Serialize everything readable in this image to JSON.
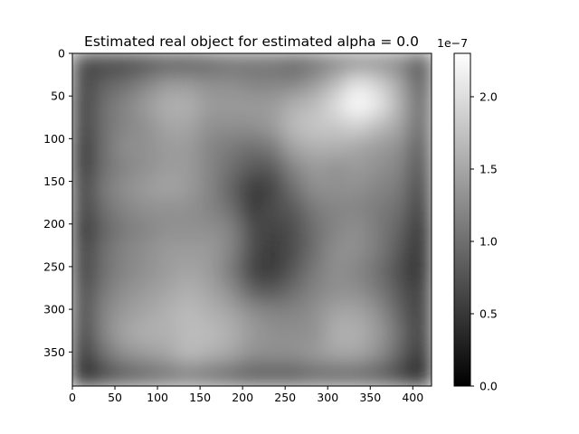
{
  "chart_data": [
    {
      "type": "heatmap",
      "title": "Estimated real object for estimated alpha = 0.0",
      "xlabel": "",
      "ylabel": "",
      "xlim": [
        0,
        422
      ],
      "ylim": [
        390,
        0
      ],
      "x_ticks": [
        0,
        50,
        100,
        150,
        200,
        250,
        300,
        350,
        400
      ],
      "y_ticks": [
        0,
        50,
        100,
        150,
        200,
        250,
        300,
        350
      ],
      "x_tick_labels": [
        "0",
        "50",
        "100",
        "150",
        "200",
        "250",
        "300",
        "350",
        "400"
      ],
      "y_tick_labels": [
        "0",
        "50",
        "100",
        "150",
        "200",
        "250",
        "300",
        "350"
      ],
      "colormap": "gray",
      "grid": false,
      "grid_rows": 16,
      "grid_cols": 17,
      "values": [
        [
          0.6,
          0.6,
          0.6,
          0.7,
          0.8,
          0.8,
          0.9,
          1.0,
          1.0,
          1.0,
          0.9,
          1.0,
          1.2,
          1.3,
          1.3,
          1.2,
          0.7
        ],
        [
          0.6,
          0.9,
          1.0,
          1.2,
          1.4,
          1.4,
          1.3,
          1.3,
          1.2,
          1.2,
          1.2,
          1.4,
          1.7,
          2.1,
          1.9,
          1.5,
          0.8
        ],
        [
          0.5,
          1.0,
          1.2,
          1.4,
          1.6,
          1.6,
          1.4,
          1.4,
          1.4,
          1.4,
          1.6,
          1.7,
          2.0,
          2.3,
          2.1,
          1.6,
          0.9
        ],
        [
          0.5,
          1.0,
          1.2,
          1.3,
          1.5,
          1.5,
          1.3,
          1.3,
          1.3,
          1.4,
          1.7,
          1.8,
          1.8,
          1.9,
          1.7,
          1.5,
          0.9
        ],
        [
          0.4,
          1.0,
          1.3,
          1.3,
          1.4,
          1.4,
          1.2,
          1.1,
          1.0,
          1.1,
          1.5,
          1.6,
          1.6,
          1.5,
          1.4,
          1.3,
          0.8
        ],
        [
          0.4,
          1.0,
          1.2,
          1.3,
          1.4,
          1.4,
          1.2,
          1.0,
          0.8,
          0.8,
          1.2,
          1.4,
          1.3,
          1.4,
          1.3,
          1.2,
          0.7
        ],
        [
          0.5,
          1.1,
          1.3,
          1.4,
          1.5,
          1.4,
          1.2,
          0.9,
          0.5,
          0.6,
          1.0,
          1.3,
          1.3,
          1.3,
          1.2,
          1.1,
          0.6
        ],
        [
          0.5,
          1.0,
          1.2,
          1.3,
          1.3,
          1.3,
          1.2,
          1.0,
          0.5,
          0.7,
          0.8,
          1.1,
          1.2,
          1.2,
          1.1,
          1.0,
          0.5
        ],
        [
          0.4,
          0.9,
          1.1,
          1.2,
          1.3,
          1.3,
          1.3,
          1.2,
          0.7,
          0.6,
          0.7,
          1.0,
          1.2,
          1.3,
          1.1,
          0.9,
          0.4
        ],
        [
          0.5,
          1.0,
          1.2,
          1.3,
          1.4,
          1.4,
          1.4,
          1.2,
          0.7,
          0.5,
          0.7,
          1.0,
          1.3,
          1.3,
          1.1,
          0.8,
          0.4
        ],
        [
          0.5,
          1.0,
          1.2,
          1.3,
          1.4,
          1.5,
          1.4,
          1.1,
          0.6,
          0.5,
          0.8,
          1.1,
          1.3,
          1.2,
          1.0,
          0.7,
          0.4
        ],
        [
          0.6,
          1.1,
          1.3,
          1.4,
          1.5,
          1.6,
          1.5,
          1.3,
          0.9,
          0.8,
          1.0,
          1.2,
          1.3,
          1.3,
          1.1,
          0.8,
          0.5
        ],
        [
          0.6,
          1.2,
          1.4,
          1.5,
          1.6,
          1.7,
          1.6,
          1.5,
          1.3,
          1.2,
          1.2,
          1.3,
          1.5,
          1.5,
          1.3,
          0.9,
          0.5
        ],
        [
          0.5,
          1.2,
          1.5,
          1.6,
          1.6,
          1.7,
          1.7,
          1.6,
          1.4,
          1.3,
          1.3,
          1.3,
          1.6,
          1.6,
          1.4,
          1.0,
          0.5
        ],
        [
          0.4,
          1.0,
          1.3,
          1.4,
          1.5,
          1.7,
          1.6,
          1.5,
          1.3,
          1.3,
          1.3,
          1.4,
          1.5,
          1.5,
          1.3,
          0.9,
          0.4
        ],
        [
          0.2,
          0.6,
          0.8,
          0.9,
          1.0,
          1.1,
          1.0,
          0.9,
          0.8,
          0.8,
          0.8,
          0.9,
          0.9,
          0.9,
          0.8,
          0.6,
          0.2
        ]
      ],
      "value_unit_multiplier": 1e-07,
      "colorbar": {
        "offset_text": "1e−7",
        "range": [
          0.0,
          2.3
        ],
        "ticks": [
          0.0,
          0.5,
          1.0,
          1.5,
          2.0
        ],
        "tick_labels": [
          "0.0",
          "0.5",
          "1.0",
          "1.5",
          "2.0"
        ]
      }
    }
  ]
}
